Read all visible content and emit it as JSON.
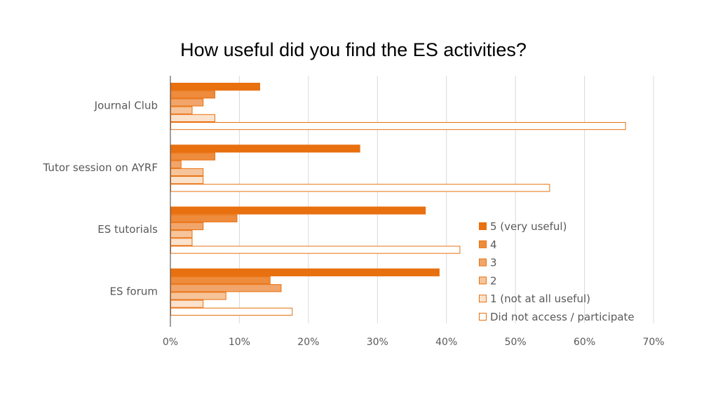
{
  "chart_data": {
    "type": "bar",
    "orientation": "horizontal",
    "title": "How useful did you find the ES activities?",
    "categories": [
      "Journal Club",
      "Tutor session on AYRF",
      "ES tutorials",
      "ES forum"
    ],
    "xlim": [
      0,
      70
    ],
    "x_ticks": [
      "0%",
      "10%",
      "20%",
      "30%",
      "40%",
      "50%",
      "60%",
      "70%"
    ],
    "grid": "vertical",
    "legend_position": "right",
    "series": [
      {
        "name": "5 (very useful)",
        "values": [
          13,
          27.5,
          37,
          39
        ],
        "color": "#E8700F",
        "fill_style": "solid"
      },
      {
        "name": "4",
        "values": [
          6.5,
          6.5,
          9.7,
          14.5
        ],
        "color": "#EE8B3C",
        "fill_style": "solid"
      },
      {
        "name": "3",
        "values": [
          4.8,
          1.6,
          4.8,
          16.1
        ],
        "color": "#F2A56A",
        "fill_style": "solid"
      },
      {
        "name": "2",
        "values": [
          3.2,
          4.8,
          3.2,
          8.1
        ],
        "color": "#F6C49A",
        "fill_style": "solid"
      },
      {
        "name": "1 (not at all useful)",
        "values": [
          6.5,
          4.8,
          3.2,
          4.8
        ],
        "color": "#FBE2CC",
        "fill_style": "light"
      },
      {
        "name": "Did not access / participate",
        "values": [
          66,
          55,
          42,
          17.7
        ],
        "color": "#FFFFFF",
        "fill_style": "outline"
      }
    ]
  }
}
